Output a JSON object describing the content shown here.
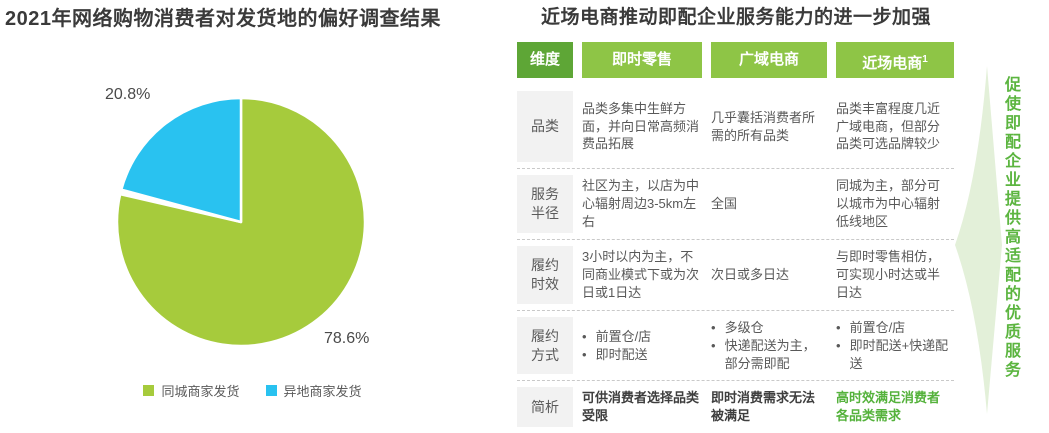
{
  "page": {
    "left_title": "2021年网络购物消费者对发货地的偏好调查结果",
    "right_title": "近场电商推动即配企业服务能力的进一步加强"
  },
  "chart_data": {
    "type": "pie",
    "title": "2021年网络购物消费者对发货地的偏好调查结果",
    "labels": [
      "同城商家发货",
      "异地商家发货"
    ],
    "values": [
      78.6,
      20.8
    ],
    "value_labels": [
      "78.6%",
      "20.8%"
    ],
    "unit": "%",
    "colors": [
      "#a6cb3c",
      "#29c2f0"
    ],
    "start_angle": "top",
    "direction": "clockwise",
    "legend_position": "bottom"
  },
  "table": {
    "headers": [
      {
        "label": "维度"
      },
      {
        "label": "即时零售"
      },
      {
        "label": "广域电商"
      },
      {
        "label": "近场电商",
        "superscript": "1"
      }
    ],
    "rows": [
      {
        "dimension": "品类",
        "cells": [
          {
            "text": "品类多集中生鲜方面，并向日常高频消费品拓展"
          },
          {
            "text": "几乎囊括消费者所需的所有品类"
          },
          {
            "text": "品类丰富程度几近广域电商，但部分品类可选品牌较少"
          }
        ]
      },
      {
        "dimension": "服务半径",
        "cells": [
          {
            "text": "社区为主，以店为中心辐射周边3-5km左右"
          },
          {
            "text": "全国"
          },
          {
            "text": "同城为主，部分可以城市为中心辐射低线地区"
          }
        ]
      },
      {
        "dimension": "履约时效",
        "cells": [
          {
            "text": "3小时以内为主，不同商业模式下或为次日或1日达"
          },
          {
            "text": "次日或多日达"
          },
          {
            "text": "与即时零售相仿，可实现小时达或半日达"
          }
        ]
      },
      {
        "dimension": "履约方式",
        "cells": [
          {
            "bullets": [
              "前置仓/店",
              "即时配送"
            ]
          },
          {
            "bullets": [
              "多级仓",
              "快递配送为主，部分需即配"
            ]
          },
          {
            "bullets": [
              "前置仓/店",
              "即时配送+快递配送"
            ]
          }
        ]
      },
      {
        "dimension": "简析",
        "cells": [
          {
            "text": "可供消费者选择品类受限",
            "emphasis": true
          },
          {
            "text": "即时消费需求无法被满足",
            "emphasis": true
          },
          {
            "text": "高时效满足消费者各品类需求",
            "emphasis": true,
            "highlight": "green"
          }
        ]
      }
    ]
  },
  "arrow_note": {
    "text": "促使即配企业提供高适配的优质服务"
  },
  "colors": {
    "header_bg": "#8ec546",
    "header_dim_bg": "#5ea636",
    "pie_green": "#a6cb3c",
    "pie_blue": "#29c2f0",
    "accent_green_text": "#5cb540",
    "arrow_fill": "#e3f0d9"
  }
}
